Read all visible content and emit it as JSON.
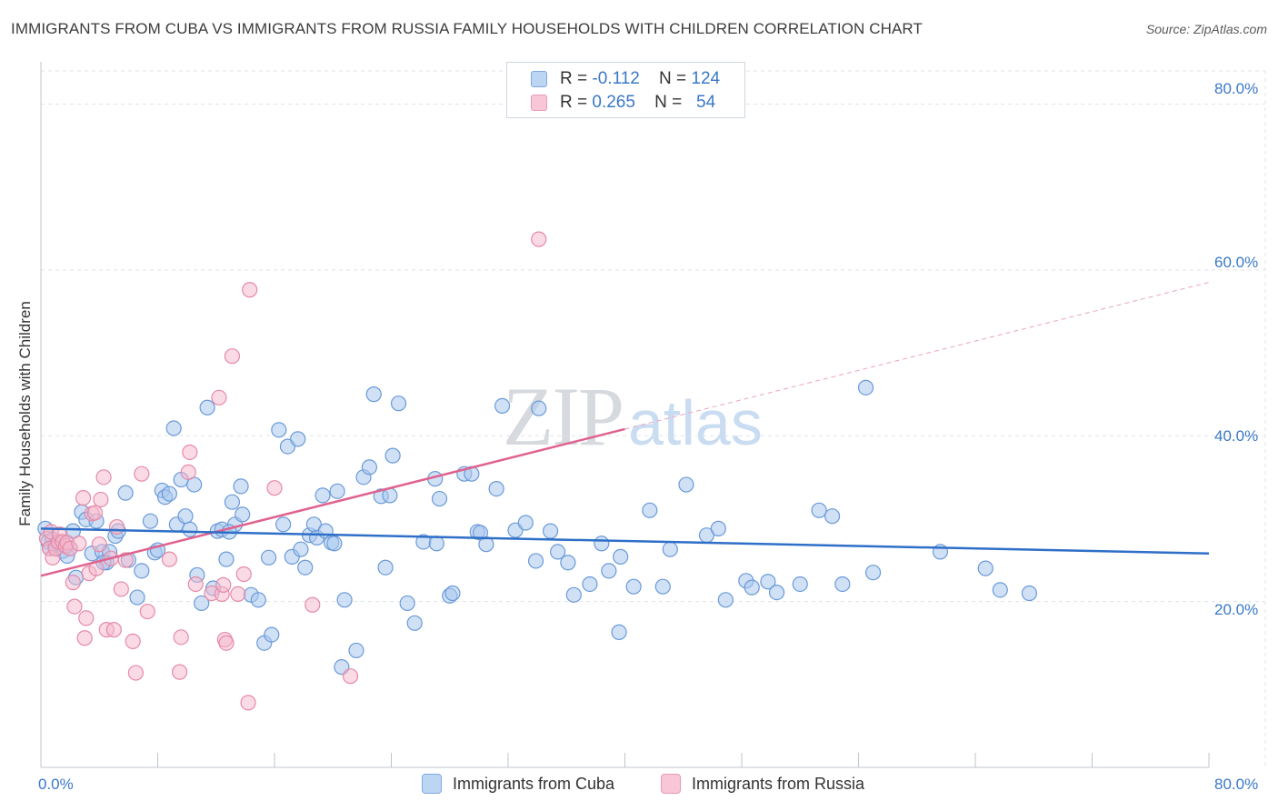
{
  "title": "IMMIGRANTS FROM CUBA VS IMMIGRANTS FROM RUSSIA FAMILY HOUSEHOLDS WITH CHILDREN CORRELATION CHART",
  "source": "Source: ZipAtlas.com",
  "watermark": {
    "zip": "ZIP",
    "atlas": "atlas"
  },
  "legend_top": {
    "rows": [
      {
        "r_label": "R =",
        "r_value": "-0.112",
        "n_label": "N =",
        "n_value": "124"
      },
      {
        "r_label": "R =",
        "r_value": "0.265",
        "n_label": "N =",
        "n_value": "54"
      }
    ]
  },
  "legend_bottom": [
    "Immigrants from Cuba",
    "Immigrants from Russia"
  ],
  "colors": {
    "cuba_fill": "#a9c8ef",
    "cuba_stroke": "#6a9ad8",
    "cuba_line": "#2f6fc8",
    "russia_fill": "#f5b8cc",
    "russia_stroke": "#e58aa8",
    "russia_line": "#e0628e",
    "axis_text": "#3a78c8",
    "grid": "#dfe3e8"
  },
  "chart_data": {
    "type": "scatter",
    "title": "IMMIGRANTS FROM CUBA VS IMMIGRANTS FROM RUSSIA FAMILY HOUSEHOLDS WITH CHILDREN CORRELATION CHART",
    "xlabel": "",
    "ylabel": "Family Households with Children",
    "xlim": [
      0,
      80
    ],
    "ylim": [
      0,
      84
    ],
    "x_tick_labels": [
      "0.0%",
      "80.0%"
    ],
    "y_tick_labels": [
      "20.0%",
      "40.0%",
      "60.0%",
      "80.0%"
    ],
    "y_ticks": [
      20,
      40,
      60,
      80
    ],
    "grid": true,
    "legend_position": "top-center",
    "series": [
      {
        "name": "Immigrants from Cuba",
        "R": -0.112,
        "N": 124,
        "trend": {
          "x": [
            0,
            80
          ],
          "y": [
            28.8,
            25.8
          ]
        },
        "points": [
          [
            0.3,
            28.8
          ],
          [
            0.5,
            27.2
          ],
          [
            0.6,
            26.4
          ],
          [
            0.8,
            27.5
          ],
          [
            1.0,
            26.8
          ],
          [
            1.2,
            27.1
          ],
          [
            1.5,
            26.1
          ],
          [
            1.8,
            25.5
          ],
          [
            2.0,
            26.4
          ],
          [
            2.2,
            28.5
          ],
          [
            2.4,
            22.9
          ],
          [
            2.8,
            30.8
          ],
          [
            3.1,
            29.9
          ],
          [
            3.5,
            25.8
          ],
          [
            3.8,
            29.7
          ],
          [
            4.2,
            26.0
          ],
          [
            4.5,
            24.7
          ],
          [
            4.7,
            26.0
          ],
          [
            5.1,
            27.9
          ],
          [
            5.3,
            28.5
          ],
          [
            5.8,
            33.1
          ],
          [
            6.0,
            25.0
          ],
          [
            6.6,
            20.5
          ],
          [
            6.9,
            23.7
          ],
          [
            7.5,
            29.7
          ],
          [
            7.8,
            25.9
          ],
          [
            8.0,
            26.2
          ],
          [
            8.3,
            33.4
          ],
          [
            8.5,
            32.6
          ],
          [
            8.8,
            33.0
          ],
          [
            9.1,
            40.9
          ],
          [
            9.3,
            29.3
          ],
          [
            9.6,
            34.7
          ],
          [
            9.9,
            30.3
          ],
          [
            10.2,
            28.7
          ],
          [
            10.5,
            34.1
          ],
          [
            10.7,
            23.2
          ],
          [
            11.0,
            19.8
          ],
          [
            11.4,
            43.4
          ],
          [
            11.8,
            21.6
          ],
          [
            12.1,
            28.5
          ],
          [
            12.4,
            28.7
          ],
          [
            12.7,
            25.1
          ],
          [
            13.1,
            32.0
          ],
          [
            13.3,
            29.3
          ],
          [
            13.7,
            33.9
          ],
          [
            13.8,
            30.5
          ],
          [
            14.4,
            20.8
          ],
          [
            14.9,
            20.2
          ],
          [
            15.3,
            15.0
          ],
          [
            15.6,
            25.3
          ],
          [
            15.8,
            16.0
          ],
          [
            16.3,
            40.7
          ],
          [
            16.6,
            29.3
          ],
          [
            16.9,
            38.7
          ],
          [
            17.2,
            25.4
          ],
          [
            17.6,
            39.6
          ],
          [
            17.8,
            26.3
          ],
          [
            18.1,
            24.1
          ],
          [
            18.4,
            28.0
          ],
          [
            18.7,
            29.3
          ],
          [
            18.9,
            27.7
          ],
          [
            19.3,
            32.8
          ],
          [
            19.5,
            28.5
          ],
          [
            19.9,
            27.1
          ],
          [
            20.3,
            33.3
          ],
          [
            20.6,
            12.1
          ],
          [
            20.8,
            20.2
          ],
          [
            21.6,
            14.1
          ],
          [
            22.1,
            35.0
          ],
          [
            22.5,
            36.2
          ],
          [
            22.8,
            45.0
          ],
          [
            23.3,
            32.7
          ],
          [
            23.6,
            24.1
          ],
          [
            23.9,
            32.8
          ],
          [
            24.1,
            37.6
          ],
          [
            24.5,
            43.9
          ],
          [
            25.1,
            19.8
          ],
          [
            25.6,
            17.4
          ],
          [
            26.2,
            27.2
          ],
          [
            27.0,
            34.8
          ],
          [
            27.3,
            32.4
          ],
          [
            28.0,
            20.7
          ],
          [
            28.2,
            21.0
          ],
          [
            29.0,
            35.4
          ],
          [
            29.5,
            35.4
          ],
          [
            29.9,
            28.4
          ],
          [
            30.1,
            28.3
          ],
          [
            30.5,
            26.9
          ],
          [
            31.2,
            33.6
          ],
          [
            31.6,
            43.6
          ],
          [
            32.5,
            28.6
          ],
          [
            33.2,
            29.5
          ],
          [
            33.9,
            24.9
          ],
          [
            34.1,
            43.3
          ],
          [
            34.9,
            28.5
          ],
          [
            35.4,
            26.0
          ],
          [
            36.5,
            20.8
          ],
          [
            37.6,
            22.1
          ],
          [
            38.4,
            27.0
          ],
          [
            38.9,
            23.7
          ],
          [
            39.6,
            16.3
          ],
          [
            39.7,
            25.4
          ],
          [
            40.6,
            21.8
          ],
          [
            41.7,
            31.0
          ],
          [
            42.6,
            21.8
          ],
          [
            43.1,
            26.3
          ],
          [
            44.2,
            34.1
          ],
          [
            45.6,
            28.0
          ],
          [
            46.4,
            28.8
          ],
          [
            46.9,
            20.2
          ],
          [
            48.3,
            22.5
          ],
          [
            48.7,
            21.7
          ],
          [
            49.8,
            22.4
          ],
          [
            50.4,
            21.1
          ],
          [
            52.0,
            22.1
          ],
          [
            53.3,
            31.0
          ],
          [
            54.2,
            30.3
          ],
          [
            54.9,
            22.1
          ],
          [
            56.5,
            45.8
          ],
          [
            57.0,
            23.5
          ],
          [
            61.6,
            26.0
          ],
          [
            64.7,
            24.0
          ],
          [
            65.7,
            21.4
          ],
          [
            67.7,
            21.0
          ],
          [
            4.3,
            24.7
          ],
          [
            12.9,
            28.4
          ],
          [
            20.1,
            27.0
          ],
          [
            27.1,
            27.0
          ],
          [
            36.1,
            24.7
          ]
        ]
      },
      {
        "name": "Immigrants from Russia",
        "R": 0.265,
        "N": 54,
        "trend": {
          "x": [
            0,
            80
          ],
          "y": [
            23.1,
            58.5
          ]
        },
        "points": [
          [
            0.4,
            27.6
          ],
          [
            0.6,
            26.4
          ],
          [
            0.7,
            28.4
          ],
          [
            0.8,
            25.3
          ],
          [
            1.0,
            26.4
          ],
          [
            1.2,
            27.2
          ],
          [
            1.3,
            28.1
          ],
          [
            1.5,
            27.2
          ],
          [
            1.7,
            26.7
          ],
          [
            1.8,
            27.1
          ],
          [
            2.0,
            26.4
          ],
          [
            2.2,
            22.3
          ],
          [
            2.3,
            19.4
          ],
          [
            2.6,
            27.0
          ],
          [
            2.9,
            32.5
          ],
          [
            3.0,
            15.6
          ],
          [
            3.1,
            18.0
          ],
          [
            3.3,
            23.4
          ],
          [
            3.5,
            30.6
          ],
          [
            3.7,
            30.7
          ],
          [
            3.8,
            24.0
          ],
          [
            4.0,
            26.9
          ],
          [
            4.1,
            32.3
          ],
          [
            4.3,
            35.0
          ],
          [
            4.5,
            16.6
          ],
          [
            4.8,
            25.2
          ],
          [
            5.0,
            16.6
          ],
          [
            5.2,
            29.0
          ],
          [
            5.5,
            21.5
          ],
          [
            5.8,
            25.0
          ],
          [
            6.3,
            15.2
          ],
          [
            6.5,
            11.4
          ],
          [
            6.9,
            35.4
          ],
          [
            7.3,
            18.8
          ],
          [
            8.8,
            25.1
          ],
          [
            9.5,
            11.5
          ],
          [
            9.6,
            15.7
          ],
          [
            10.1,
            35.6
          ],
          [
            10.2,
            38.0
          ],
          [
            10.6,
            22.1
          ],
          [
            11.7,
            21.0
          ],
          [
            12.2,
            44.6
          ],
          [
            12.4,
            20.9
          ],
          [
            12.5,
            22.0
          ],
          [
            12.6,
            15.4
          ],
          [
            12.7,
            15.0
          ],
          [
            13.1,
            49.6
          ],
          [
            13.5,
            20.9
          ],
          [
            13.9,
            23.3
          ],
          [
            14.2,
            7.8
          ],
          [
            14.3,
            57.6
          ],
          [
            16.0,
            33.7
          ],
          [
            18.6,
            19.6
          ],
          [
            21.2,
            11.0
          ],
          [
            34.1,
            63.7
          ]
        ]
      }
    ]
  }
}
